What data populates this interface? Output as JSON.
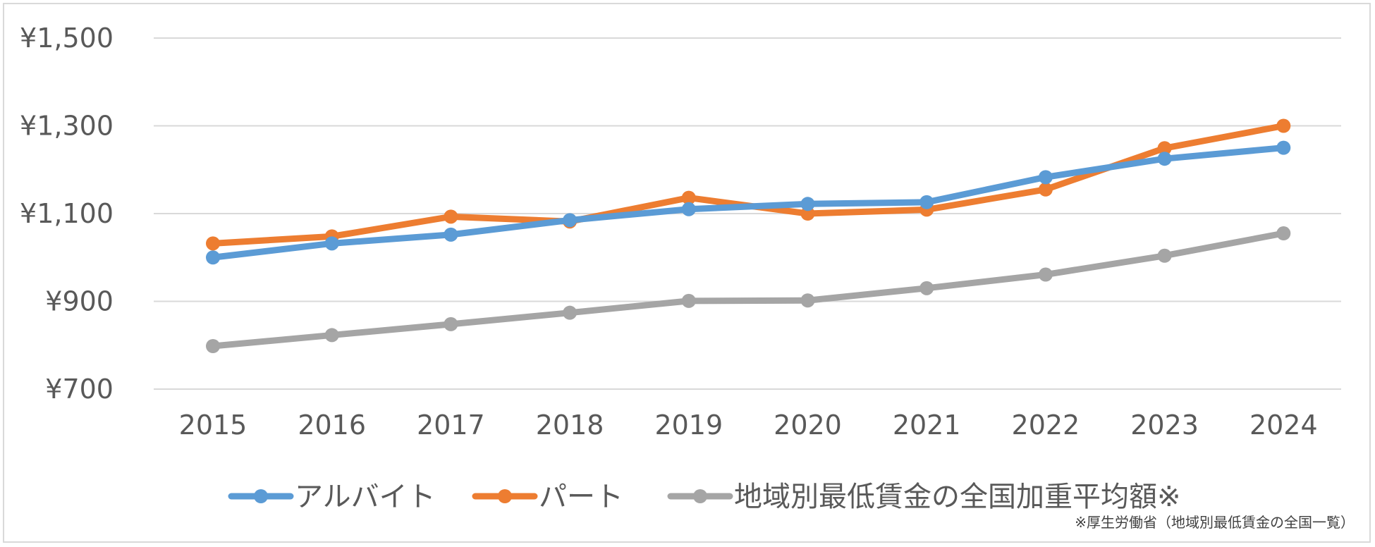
{
  "chart_data": {
    "type": "line",
    "categories": [
      "2015",
      "2016",
      "2017",
      "2018",
      "2019",
      "2020",
      "2021",
      "2022",
      "2023",
      "2024"
    ],
    "y_tick_labels": [
      "¥1,500",
      "¥1,300",
      "¥1,100",
      "¥900",
      "¥700"
    ],
    "y_ticks": [
      1500,
      1300,
      1100,
      900,
      700
    ],
    "ylim": [
      700,
      1500
    ],
    "grid": true,
    "legend_position": "bottom",
    "series": [
      {
        "name": "アルバイト",
        "color": "#5b9bd5",
        "values": [
          1000,
          1032,
          1052,
          1085,
          1110,
          1122,
          1126,
          1183,
          1225,
          1250
        ]
      },
      {
        "name": "パート",
        "color": "#ed7d31",
        "values": [
          1032,
          1048,
          1093,
          1082,
          1136,
          1100,
          1109,
          1155,
          1249,
          1300
        ]
      },
      {
        "name": "地域別最低賃金の全国加重平均額※",
        "color": "#a5a5a5",
        "values": [
          798,
          823,
          848,
          874,
          901,
          902,
          930,
          961,
          1004,
          1055
        ]
      }
    ],
    "source_note": "※厚生労働省（地域別最低賃金の全国一覧）"
  }
}
